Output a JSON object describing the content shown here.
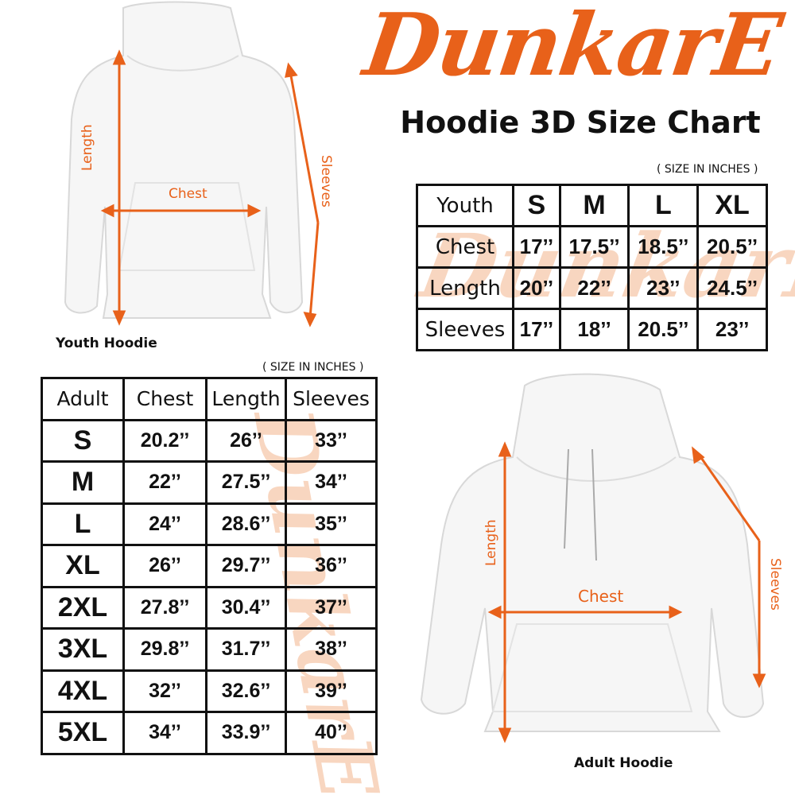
{
  "brand": {
    "logo_text": "DunkarE",
    "color": "#e8611a"
  },
  "title": "Hoodie 3D Size Chart",
  "youth": {
    "unit_note": "( SIZE IN INCHES )",
    "caption": "Youth Hoodie",
    "diagram_labels": {
      "length": "Length",
      "chest": "Chest",
      "sleeves": "Sleeves"
    },
    "header": [
      "Youth",
      "S",
      "M",
      "L",
      "XL"
    ],
    "rows": [
      [
        "Chest",
        "17’’",
        "17.5’’",
        "18.5’’",
        "20.5’’"
      ],
      [
        "Length",
        "20’’",
        "22’’",
        "23’’",
        "24.5’’"
      ],
      [
        "Sleeves",
        "17’’",
        "18’’",
        "20.5’’",
        "23’’"
      ]
    ]
  },
  "adult": {
    "unit_note": "( SIZE IN INCHES )",
    "caption": "Adult Hoodie",
    "diagram_labels": {
      "length": "Length",
      "chest": "Chest",
      "sleeves": "Sleeves"
    },
    "header": [
      "Adult",
      "Chest",
      "Length",
      "Sleeves"
    ],
    "rows": [
      [
        "S",
        "20.2’’",
        "26’’",
        "33’’"
      ],
      [
        "M",
        "22’’",
        "27.5’’",
        "34’’"
      ],
      [
        "L",
        "24’’",
        "28.6’’",
        "35’’"
      ],
      [
        "XL",
        "26’’",
        "29.7’’",
        "36’’"
      ],
      [
        "2XL",
        "27.8’’",
        "30.4’’",
        "37’’"
      ],
      [
        "3XL",
        "29.8’’",
        "31.7’’",
        "38’’"
      ],
      [
        "4XL",
        "32’’",
        "32.6’’",
        "39’’"
      ],
      [
        "5XL",
        "34’’",
        "33.9’’",
        "40’’"
      ]
    ]
  }
}
